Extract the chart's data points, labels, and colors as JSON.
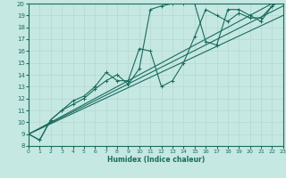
{
  "xlabel": "Humidex (Indice chaleur)",
  "bg_color": "#c5e8e2",
  "line_color": "#1a6b5e",
  "grid_color": "#b8d8d0",
  "xlim": [
    0,
    23
  ],
  "ylim": [
    8,
    20
  ],
  "xticks": [
    0,
    1,
    2,
    3,
    4,
    5,
    6,
    7,
    8,
    9,
    10,
    11,
    12,
    13,
    14,
    15,
    16,
    17,
    18,
    19,
    20,
    21,
    22,
    23
  ],
  "yticks": [
    8,
    9,
    10,
    11,
    12,
    13,
    14,
    15,
    16,
    17,
    18,
    19,
    20
  ],
  "curve1_x": [
    0,
    1,
    2,
    3,
    4,
    5,
    6,
    7,
    8,
    9,
    10,
    11,
    12,
    13,
    14,
    15,
    16,
    17,
    18,
    19,
    20,
    21,
    22,
    23
  ],
  "curve1_y": [
    9.0,
    8.5,
    10.2,
    11.0,
    11.8,
    12.2,
    13.0,
    14.2,
    13.5,
    13.5,
    16.2,
    16.0,
    13.0,
    13.5,
    15.0,
    17.2,
    19.5,
    19.0,
    18.5,
    19.2,
    18.8,
    18.8,
    19.8,
    20.3
  ],
  "curve2_x": [
    0,
    1,
    2,
    3,
    4,
    5,
    6,
    7,
    8,
    9,
    10,
    11,
    12,
    13,
    14,
    15,
    16,
    17,
    18,
    19,
    20,
    21,
    22,
    23
  ],
  "curve2_y": [
    9.0,
    8.5,
    10.2,
    11.0,
    11.5,
    12.0,
    12.8,
    13.5,
    14.0,
    13.2,
    14.5,
    19.5,
    19.8,
    20.0,
    20.0,
    20.0,
    16.8,
    16.5,
    19.5,
    19.5,
    19.0,
    18.5,
    19.8,
    20.5
  ],
  "reg_lines": [
    [
      9.0,
      20.5
    ],
    [
      9.0,
      19.8
    ],
    [
      9.0,
      19.0
    ]
  ]
}
